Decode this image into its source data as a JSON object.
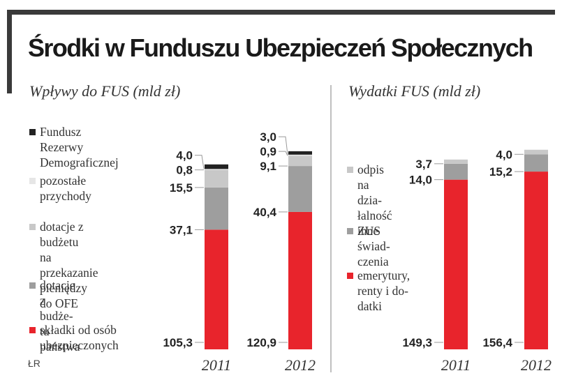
{
  "title": "Środki w Funduszu Ubezpieczeń Społecznych",
  "source": "ŁR",
  "colors": {
    "red": "#e8242c",
    "dark_gray": "#9e9e9e",
    "light_gray": "#c8c8c8",
    "lightest_gray": "#e6e6e6",
    "black": "#222222",
    "frame": "#3a3a3a"
  },
  "chart_data": [
    {
      "type": "bar",
      "stacked": true,
      "title": "Wpływy do FUS (mld zł)",
      "categories": [
        "2011",
        "2012"
      ],
      "series": [
        {
          "name": "składki od osób ubezpieczonych",
          "values": [
            105.3,
            120.9
          ],
          "color": "#e8242c"
        },
        {
          "name": "dotacje z budżetu państwa",
          "values": [
            37.1,
            40.4
          ],
          "color": "#9e9e9e"
        },
        {
          "name": "dotacje z budżetu na przekazanie pieniędzy do OFE",
          "values": [
            15.5,
            9.1
          ],
          "color": "#c8c8c8"
        },
        {
          "name": "pozostałe przychody",
          "values": [
            0.8,
            0.9
          ],
          "color": "#e6e6e6"
        },
        {
          "name": "Fundusz Rezerwy Demograficznej",
          "values": [
            4.0,
            3.0
          ],
          "color": "#222222"
        }
      ],
      "value_labels": [
        [
          "105,3",
          "37,1",
          "15,5",
          "0,8",
          "4,0"
        ],
        [
          "120,9",
          "40,4",
          "9,1",
          "0,9",
          "3,0"
        ]
      ]
    },
    {
      "type": "bar",
      "stacked": true,
      "title": "Wydatki FUS  (mld zł)",
      "categories": [
        "2011",
        "2012"
      ],
      "series": [
        {
          "name": "emerytury, renty i dodatki",
          "values": [
            149.3,
            156.4
          ],
          "color": "#e8242c"
        },
        {
          "name": "inne świadczenia",
          "values": [
            14.0,
            15.2
          ],
          "color": "#9e9e9e"
        },
        {
          "name": "odpis na działalność ZUS",
          "values": [
            3.7,
            4.0
          ],
          "color": "#c8c8c8"
        }
      ],
      "value_labels": [
        [
          "149,3",
          "14,0",
          "3,7"
        ],
        [
          "156,4",
          "15,2",
          "4,0"
        ]
      ]
    }
  ],
  "legend_left": [
    {
      "text": "Fundusz Rezerwy\nDemograficznej",
      "color": "#222222"
    },
    {
      "text": "pozostałe\nprzychody",
      "color": "#e6e6e6"
    },
    {
      "text": "dotacje z budżetu\nna przekazanie\npieniędzy do OFE",
      "color": "#c8c8c8"
    },
    {
      "text": "dotacje z budże-\ntu państwa",
      "color": "#9e9e9e"
    },
    {
      "text": "składki od osób\nubezpieczonych",
      "color": "#e8242c"
    }
  ],
  "legend_right": [
    {
      "text": "odpis\nna dzia-\nłalność ZUS",
      "color": "#c8c8c8"
    },
    {
      "text": "inne świad-\nczenia",
      "color": "#9e9e9e"
    },
    {
      "text": "emerytury,\nrenty i do-\ndatki",
      "color": "#e8242c"
    }
  ]
}
